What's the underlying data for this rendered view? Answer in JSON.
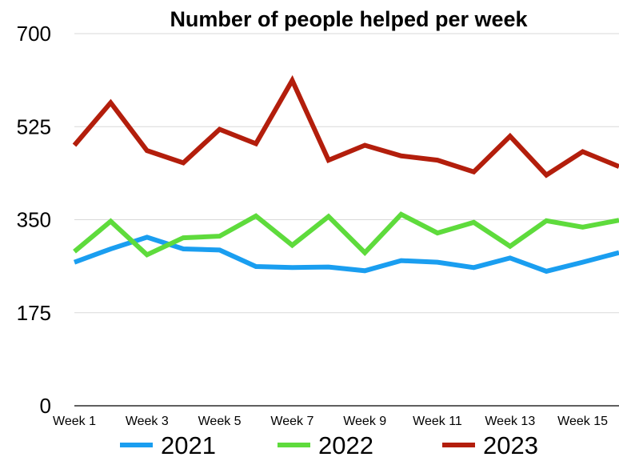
{
  "chart_data": {
    "type": "line",
    "title": "Number of people helped per week",
    "xlabel": "",
    "ylabel": "",
    "ylim": [
      0,
      700
    ],
    "yticks": [
      "0",
      "175",
      "350",
      "525",
      "700"
    ],
    "ytick_values": [
      0,
      175,
      350,
      525,
      700
    ],
    "categories": [
      "Week 1",
      "Week 2",
      "Week 3",
      "Week 4",
      "Week 5",
      "Week 6",
      "Week 7",
      "Week 8",
      "Week 9",
      "Week 10",
      "Week 11",
      "Week 12",
      "Week 13",
      "Week 14",
      "Week 15",
      "Week 16"
    ],
    "xtick_labels": [
      "Week 1",
      "Week 3",
      "Week 5",
      "Week 7",
      "Week 9",
      "Week 11",
      "Week 13",
      "Week 15"
    ],
    "grid": true,
    "legend_position": "bottom",
    "series": [
      {
        "name": "2021",
        "color": "#1a9ef0",
        "values": [
          270,
          295,
          317,
          295,
          293,
          262,
          260,
          261,
          254,
          273,
          270,
          260,
          278,
          253,
          270,
          288
        ]
      },
      {
        "name": "2022",
        "color": "#5edb3c",
        "values": [
          290,
          347,
          284,
          316,
          319,
          357,
          302,
          356,
          288,
          360,
          325,
          345,
          300,
          348,
          336,
          349
        ]
      },
      {
        "name": "2023",
        "color": "#b31e0c",
        "values": [
          490,
          570,
          480,
          457,
          520,
          493,
          612,
          462,
          490,
          470,
          462,
          440,
          507,
          434,
          478,
          450
        ]
      }
    ]
  }
}
